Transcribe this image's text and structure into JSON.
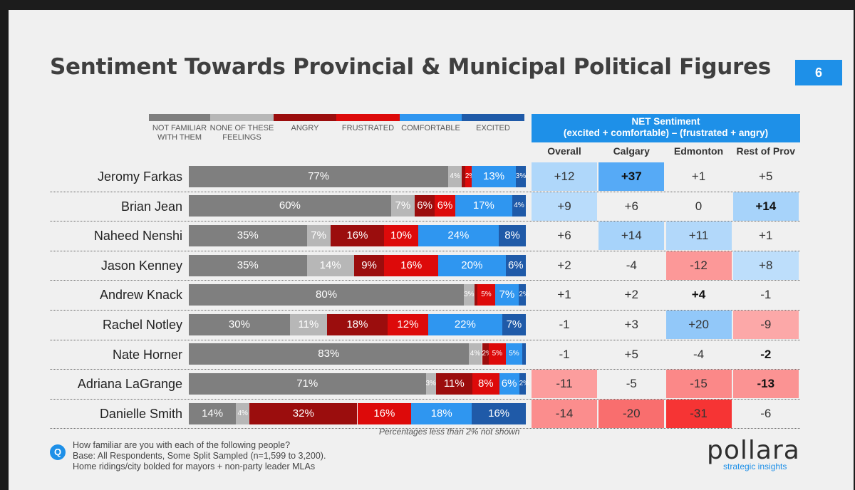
{
  "title": "Sentiment Towards Provincial & Municipal Political Figures",
  "page_number": "6",
  "colors": {
    "not_familiar": "#7f7f7f",
    "none": "#b7b7b7",
    "angry": "#9b0d0d",
    "frustrated": "#dd0a0a",
    "comfortable": "#2f96f0",
    "excited": "#1f5aa8",
    "accent": "#1e90e8"
  },
  "legend": [
    {
      "label": "NOT FAMILIAR WITH THEM",
      "key": "not_familiar"
    },
    {
      "label": "NONE OF THESE FEELINGS",
      "key": "none"
    },
    {
      "label": "ANGRY",
      "key": "angry"
    },
    {
      "label": "FRUSTRATED",
      "key": "frustrated"
    },
    {
      "label": "COMFORTABLE",
      "key": "comfortable"
    },
    {
      "label": "EXCITED",
      "key": "excited"
    }
  ],
  "net": {
    "header_line1": "NET Sentiment",
    "header_line2": "(excited + comfortable) – (frustrated + angry)",
    "columns": [
      "Overall",
      "Calgary",
      "Edmonton",
      "Rest of Prov"
    ]
  },
  "chart_data": {
    "type": "bar",
    "orientation": "horizontal",
    "stacked": true,
    "title": "Sentiment Towards Provincial & Municipal Political Figures",
    "categories": [
      "Jeromy Farkas",
      "Brian Jean",
      "Naheed Nenshi",
      "Jason Kenney",
      "Andrew Knack",
      "Rachel Notley",
      "Nate Horner",
      "Adriana LaGrange",
      "Danielle Smith"
    ],
    "series": [
      {
        "name": "NOT FAMILIAR WITH THEM",
        "key": "not_familiar",
        "values": [
          77,
          60,
          35,
          35,
          80,
          30,
          83,
          71,
          14
        ],
        "labels": [
          "77%",
          "60%",
          "35%",
          "35%",
          "80%",
          "30%",
          "83%",
          "71%",
          "14%"
        ]
      },
      {
        "name": "NONE OF THESE FEELINGS",
        "key": "none",
        "values": [
          4,
          7,
          7,
          14,
          3,
          11,
          4,
          3,
          4
        ],
        "labels": [
          "4%",
          "7%",
          "7%",
          "14%",
          "3%",
          "11%",
          "4%",
          "3%",
          "4%"
        ]
      },
      {
        "name": "ANGRY",
        "key": "angry",
        "values": [
          1,
          6,
          16,
          9,
          1,
          18,
          2,
          11,
          32
        ],
        "labels": [
          "",
          "6%",
          "16%",
          "9%",
          "",
          "18%",
          "2%",
          "11%",
          "32%"
        ]
      },
      {
        "name": "FRUSTRATED",
        "key": "frustrated",
        "values": [
          2,
          6,
          10,
          16,
          5,
          12,
          5,
          8,
          16
        ],
        "labels": [
          "2%",
          "6%",
          "10%",
          "16%",
          "5%",
          "12%",
          "5%",
          "8%",
          "16%"
        ]
      },
      {
        "name": "COMFORTABLE",
        "key": "comfortable",
        "values": [
          13,
          17,
          24,
          20,
          7,
          22,
          5,
          6,
          18
        ],
        "labels": [
          "13%",
          "17%",
          "24%",
          "20%",
          "7%",
          "22%",
          "5%",
          "6%",
          "18%"
        ]
      },
      {
        "name": "EXCITED",
        "key": "excited",
        "values": [
          3,
          4,
          8,
          6,
          2,
          7,
          1,
          2,
          16
        ],
        "labels": [
          "3%",
          "4%",
          "8%",
          "6%",
          "2%",
          "7%",
          "",
          "2%",
          "16%"
        ]
      }
    ],
    "net_sentiment": {
      "columns": [
        "Overall",
        "Calgary",
        "Edmonton",
        "Rest of Prov"
      ],
      "rows": [
        [
          "+12",
          "+37",
          "+1",
          "+5"
        ],
        [
          "+9",
          "+6",
          "0",
          "+14"
        ],
        [
          "+6",
          "+14",
          "+11",
          "+1"
        ],
        [
          "+2",
          "-4",
          "-12",
          "+8"
        ],
        [
          "+1",
          "+2",
          "+4",
          "-1"
        ],
        [
          "-1",
          "+3",
          "+20",
          "-9"
        ],
        [
          "-1",
          "+5",
          "-4",
          "-2"
        ],
        [
          "-11",
          "-5",
          "-15",
          "-13"
        ],
        [
          "-14",
          "-20",
          "-31",
          "-6"
        ]
      ],
      "bold": [
        [
          false,
          true,
          false,
          false
        ],
        [
          false,
          false,
          false,
          true
        ],
        [
          false,
          false,
          false,
          false
        ],
        [
          false,
          false,
          false,
          false
        ],
        [
          false,
          false,
          true,
          false
        ],
        [
          false,
          false,
          false,
          false
        ],
        [
          false,
          false,
          false,
          true
        ],
        [
          false,
          false,
          false,
          true
        ],
        [
          false,
          false,
          false,
          false
        ]
      ]
    },
    "xlim": [
      0,
      100
    ]
  },
  "footnote": "Percentages less than 2% not shown",
  "question": {
    "icon": "Q",
    "line1": "How familiar are you with each of the following people?",
    "line2": "Base: All Respondents, Some Split Sampled (n=1,599 to 3,200).",
    "line3": "Home ridings/city bolded for mayors + non-party leader MLAs"
  },
  "logo": {
    "name": "pollara",
    "tagline": "strategic insights"
  }
}
